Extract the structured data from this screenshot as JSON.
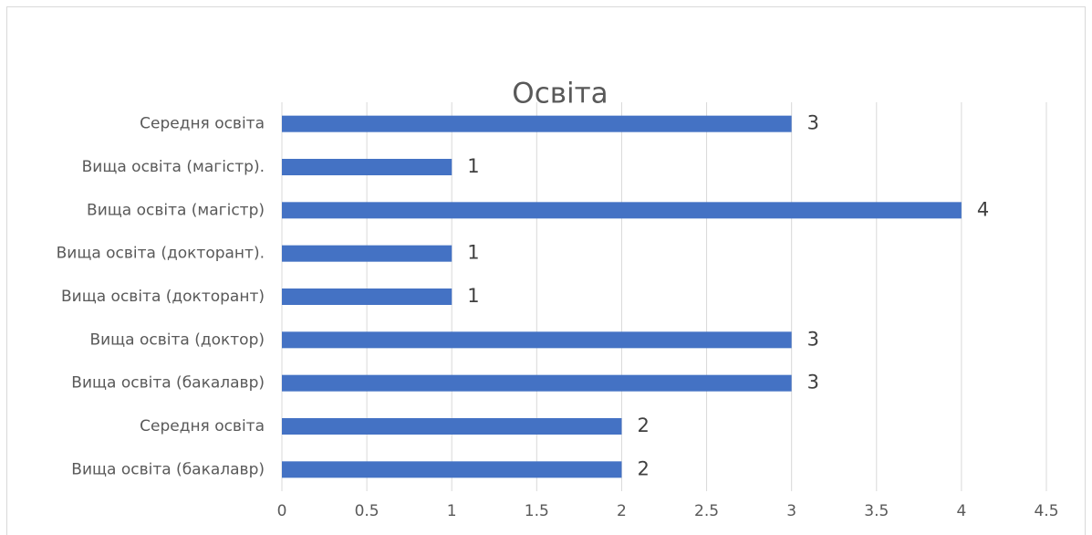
{
  "chart_data": {
    "type": "hbar",
    "title": "Освіта",
    "categories": [
      "Середня освіта",
      "Вища освіта (магістр).",
      "Вища освіта (магістр)",
      "Вища освіта (докторант).",
      "Вища освіта (докторант)",
      "Вища освіта (доктор)",
      "Вища освіта (бакалавр)",
      "Середня освіта",
      "Вища освіта (бакалавр)"
    ],
    "values": [
      3,
      1,
      4,
      1,
      1,
      3,
      3,
      2,
      2
    ],
    "color": "#4472c4",
    "xlim": [
      0,
      4.5
    ],
    "xticks": [
      0,
      0.5,
      1,
      1.5,
      2,
      2.5,
      3,
      3.5,
      4,
      4.5
    ],
    "grid": true
  }
}
